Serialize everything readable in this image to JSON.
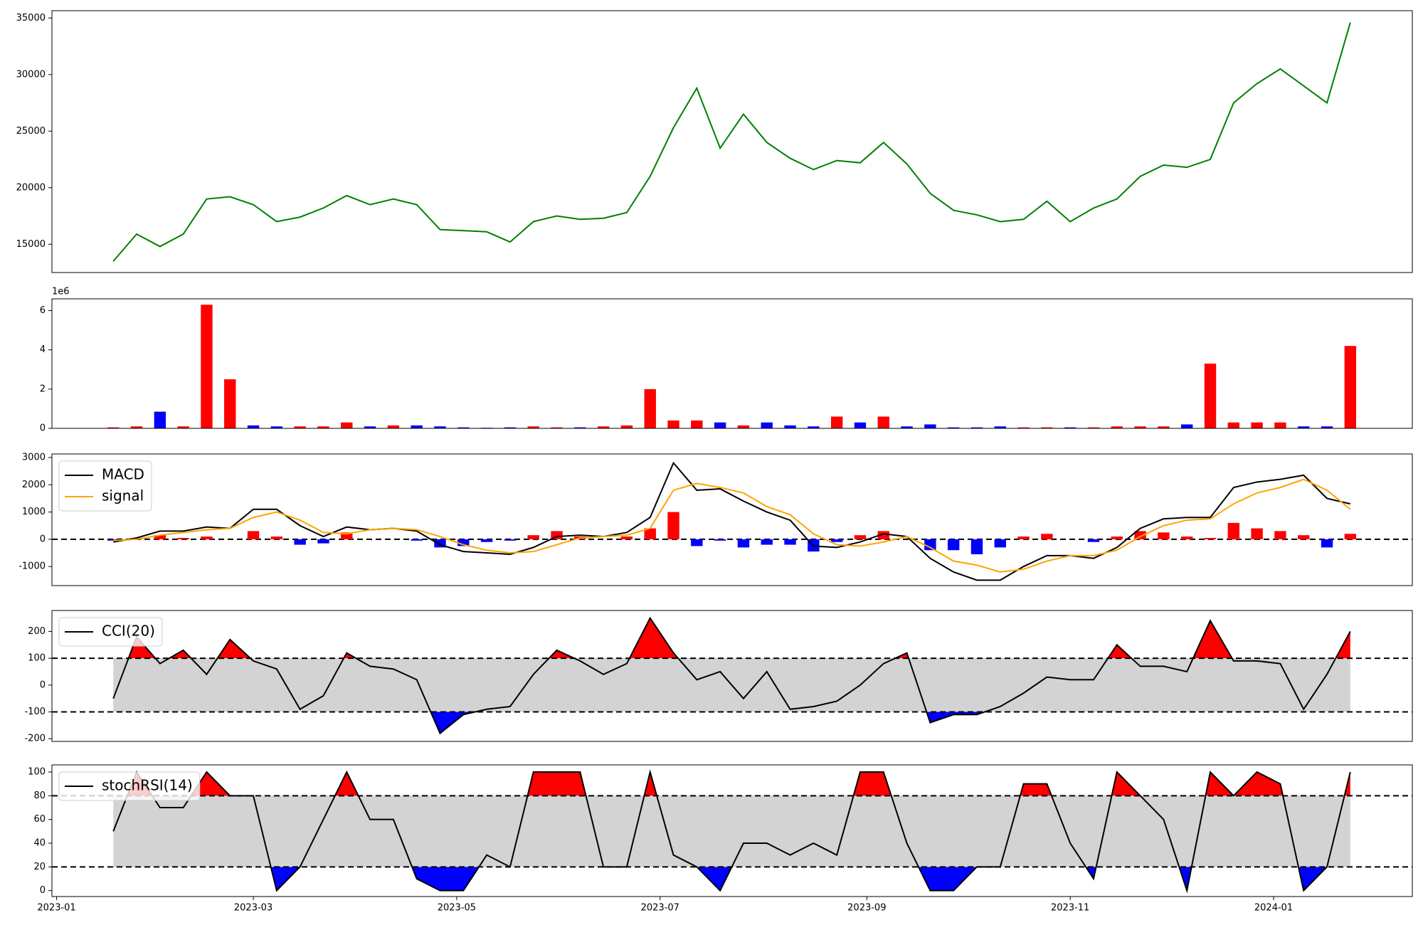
{
  "chart_data": {
    "type": "panels",
    "x": [
      17,
      24,
      31,
      38,
      45,
      52,
      59,
      66,
      73,
      80,
      87,
      94,
      101,
      108,
      115,
      122,
      129,
      136,
      143,
      150,
      157,
      164,
      171,
      178,
      185,
      192,
      199,
      206,
      213,
      220,
      227,
      234,
      241,
      248,
      255,
      262,
      269,
      276,
      283,
      290,
      297,
      304,
      311,
      318,
      325,
      332,
      339,
      346,
      353,
      360,
      367,
      374,
      381,
      388
    ],
    "xlim": [
      -1.4,
      406.6
    ],
    "xticks": [
      {
        "value": 0,
        "label": "2023-01"
      },
      {
        "value": 59,
        "label": "2023-03"
      },
      {
        "value": 120,
        "label": "2023-05"
      },
      {
        "value": 181,
        "label": "2023-07"
      },
      {
        "value": 243,
        "label": "2023-09"
      },
      {
        "value": 304,
        "label": "2023-11"
      },
      {
        "value": 365,
        "label": "2024-01"
      }
    ],
    "panels": [
      {
        "type": "line",
        "ylim": [
          12500,
          35650
        ],
        "yticks": [
          15000,
          20000,
          25000,
          30000,
          35000
        ],
        "series": [
          {
            "color": "#008000",
            "values": [
              13500,
              15900,
              14800,
              15900,
              19000,
              19200,
              18500,
              17000,
              17400,
              18200,
              19300,
              18500,
              19000,
              18500,
              16300,
              16200,
              16100,
              15200,
              17000,
              17500,
              17200,
              17300,
              17800,
              21000,
              25300,
              28800,
              23500,
              26500,
              24000,
              22600,
              21600,
              22400,
              22200,
              24000,
              22100,
              19500,
              18000,
              17600,
              17000,
              17200,
              18800,
              17000,
              18200,
              19000,
              21000,
              22000,
              21800,
              22500,
              27500,
              29200,
              30500,
              29000,
              27500,
              34600
            ]
          }
        ]
      },
      {
        "type": "bar",
        "ylim": [
          0,
          6600000
        ],
        "offset_label": "1e6",
        "yticks": [
          0,
          {
            "value": 2000000,
            "label": "2"
          },
          {
            "value": 4000000,
            "label": "4"
          },
          {
            "value": 6000000,
            "label": "6"
          }
        ],
        "values": [
          50000,
          100000,
          850000,
          100000,
          6300000,
          2500000,
          150000,
          100000,
          100000,
          100000,
          300000,
          100000,
          150000,
          150000,
          100000,
          50000,
          30000,
          50000,
          100000,
          50000,
          50000,
          100000,
          150000,
          2000000,
          400000,
          400000,
          300000,
          150000,
          300000,
          150000,
          100000,
          600000,
          300000,
          600000,
          100000,
          200000,
          50000,
          50000,
          100000,
          50000,
          50000,
          50000,
          50000,
          100000,
          100000,
          100000,
          200000,
          3300000,
          300000,
          300000,
          300000,
          100000,
          100000,
          4200000
        ],
        "colors": [
          "red",
          "red",
          "blue",
          "red",
          "red",
          "red",
          "blue",
          "blue",
          "red",
          "red",
          "red",
          "blue",
          "red",
          "blue",
          "blue",
          "blue",
          "blue",
          "blue",
          "red",
          "red",
          "blue",
          "red",
          "red",
          "red",
          "red",
          "red",
          "blue",
          "red",
          "blue",
          "blue",
          "blue",
          "red",
          "blue",
          "red",
          "blue",
          "blue",
          "blue",
          "blue",
          "blue",
          "red",
          "red",
          "blue",
          "red",
          "red",
          "red",
          "red",
          "blue",
          "red",
          "red",
          "red",
          "red",
          "blue",
          "blue",
          "red"
        ]
      },
      {
        "type": "macd",
        "ylim": [
          -1700,
          3130
        ],
        "yticks": [
          -1000,
          0,
          1000,
          2000,
          3000
        ],
        "hlines": [
          0
        ],
        "legend": "upper left",
        "series": [
          {
            "name": "MACD",
            "color": "#000000",
            "values": [
              -100,
              50,
              300,
              300,
              450,
              400,
              1100,
              1100,
              500,
              100,
              450,
              350,
              400,
              300,
              -200,
              -450,
              -500,
              -550,
              -300,
              100,
              150,
              100,
              250,
              800,
              2800,
              1800,
              1850,
              1400,
              1000,
              700,
              -250,
              -300,
              -100,
              200,
              100,
              -700,
              -1200,
              -1500,
              -1500,
              -1000,
              -600,
              -600,
              -700,
              -300,
              400,
              750,
              800,
              800,
              1900,
              2100,
              2200,
              2350,
              1500,
              1300
            ]
          },
          {
            "name": "signal",
            "color": "#ffa500",
            "values": [
              -50,
              0,
              150,
              250,
              350,
              400,
              800,
              1000,
              700,
              250,
              200,
              350,
              400,
              350,
              100,
              -200,
              -400,
              -500,
              -450,
              -200,
              50,
              100,
              150,
              400,
              1800,
              2050,
              1900,
              1700,
              1200,
              900,
              200,
              -200,
              -250,
              -100,
              100,
              -300,
              -800,
              -950,
              -1200,
              -1100,
              -800,
              -600,
              -600,
              -400,
              100,
              500,
              700,
              750,
              1300,
              1700,
              1900,
              2200,
              1800,
              1100
            ]
          }
        ],
        "bars": {
          "pos_color": "#ff0000",
          "neg_color": "#0000ff",
          "values": [
            -50,
            50,
            150,
            50,
            100,
            0,
            300,
            100,
            -200,
            -150,
            250,
            0,
            0,
            -50,
            -300,
            -250,
            -100,
            -50,
            150,
            300,
            100,
            0,
            100,
            400,
            1000,
            -250,
            -50,
            -300,
            -200,
            -200,
            -450,
            -100,
            150,
            300,
            0,
            -400,
            -400,
            -550,
            -300,
            100,
            200,
            0,
            -100,
            100,
            300,
            250,
            100,
            50,
            600,
            400,
            300,
            150,
            -300,
            200
          ]
        }
      },
      {
        "type": "oscillator",
        "ylim": [
          -210,
          278
        ],
        "yticks": [
          -200,
          -100,
          0,
          100,
          200
        ],
        "upper": 100,
        "lower": -100,
        "band_color": "#d3d3d3",
        "upper_color": "#ff0000",
        "lower_color": "#0000ff",
        "legend": "upper left",
        "series": [
          {
            "name": "CCI(20)",
            "color": "#000000",
            "values": [
              -50,
              180,
              80,
              130,
              40,
              170,
              90,
              60,
              -90,
              -40,
              120,
              70,
              60,
              20,
              -180,
              -110,
              -90,
              -80,
              40,
              130,
              90,
              40,
              80,
              250,
              120,
              20,
              50,
              -50,
              50,
              -90,
              -80,
              -60,
              0,
              80,
              120,
              -140,
              -110,
              -110,
              -80,
              -30,
              30,
              20,
              20,
              150,
              70,
              70,
              50,
              240,
              90,
              90,
              80,
              -90,
              40,
              200
            ]
          }
        ]
      },
      {
        "type": "oscillator",
        "ylim": [
          -5,
          106
        ],
        "yticks": [
          0,
          20,
          40,
          60,
          80,
          100
        ],
        "upper": 80,
        "lower": 20,
        "band_color": "#d3d3d3",
        "upper_color": "#ff0000",
        "lower_color": "#0000ff",
        "legend": "upper left",
        "series": [
          {
            "name": "stochRSI(14)",
            "color": "#000000",
            "values": [
              50,
              100,
              70,
              70,
              100,
              80,
              80,
              0,
              20,
              60,
              100,
              60,
              60,
              10,
              0,
              0,
              30,
              20,
              100,
              100,
              100,
              20,
              20,
              100,
              30,
              20,
              0,
              40,
              40,
              30,
              40,
              30,
              100,
              100,
              40,
              0,
              0,
              20,
              20,
              90,
              90,
              40,
              10,
              100,
              80,
              60,
              0,
              100,
              80,
              100,
              90,
              0,
              20,
              100
            ]
          }
        ]
      }
    ]
  }
}
